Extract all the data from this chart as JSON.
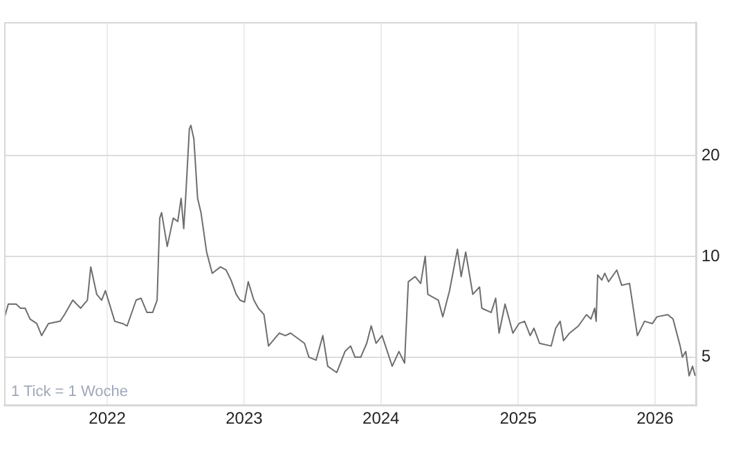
{
  "chart_data": {
    "type": "line",
    "annotations": [
      "1 Tick = 1 Woche"
    ],
    "x": [
      "2021-04-01",
      "2021-04-12",
      "2021-05-03",
      "2021-05-15",
      "2021-05-27",
      "2021-06-09",
      "2021-06-27",
      "2021-07-10",
      "2021-07-28",
      "2021-08-28",
      "2021-09-09",
      "2021-10-01",
      "2021-10-22",
      "2021-11-09",
      "2021-11-18",
      "2021-12-04",
      "2021-12-17",
      "2021-12-27",
      "2022-01-21",
      "2022-02-11",
      "2022-02-23",
      "2022-03-19",
      "2022-04-01",
      "2022-04-17",
      "2022-05-02",
      "2022-05-14",
      "2022-05-21",
      "2022-05-26",
      "2022-06-10",
      "2022-06-26",
      "2022-07-08",
      "2022-07-17",
      "2022-07-24",
      "2022-07-29",
      "2022-08-08",
      "2022-08-12",
      "2022-08-20",
      "2022-08-30",
      "2022-09-08",
      "2022-09-23",
      "2022-10-08",
      "2022-10-30",
      "2022-11-14",
      "2022-11-27",
      "2022-12-11",
      "2022-12-21",
      "2023-01-02",
      "2023-01-12",
      "2023-01-27",
      "2023-02-08",
      "2023-02-23",
      "2023-03-07",
      "2023-04-05",
      "2023-04-21",
      "2023-05-05",
      "2023-06-11",
      "2023-06-23",
      "2023-07-12",
      "2023-07-30",
      "2023-08-12",
      "2023-09-05",
      "2023-09-27",
      "2023-10-12",
      "2023-10-24",
      "2023-11-08",
      "2023-11-24",
      "2023-12-06",
      "2023-12-19",
      "2024-01-04",
      "2024-01-31",
      "2024-02-18",
      "2024-03-04",
      "2024-03-14",
      "2024-04-01",
      "2024-04-16",
      "2024-04-28",
      "2024-05-05",
      "2024-06-02",
      "2024-06-14",
      "2024-07-02",
      "2024-07-23",
      "2024-08-02",
      "2024-08-14",
      "2024-09-02",
      "2024-09-20",
      "2024-09-26",
      "2024-10-21",
      "2024-11-02",
      "2024-11-11",
      "2024-11-27",
      "2024-12-18",
      "2025-01-03",
      "2025-01-18",
      "2025-02-02",
      "2025-02-12",
      "2025-02-27",
      "2025-03-30",
      "2025-04-11",
      "2025-04-23",
      "2025-05-02",
      "2025-05-18",
      "2025-06-11",
      "2025-07-02",
      "2025-07-14",
      "2025-07-24",
      "2025-07-28",
      "2025-08-01",
      "2025-08-12",
      "2025-08-20",
      "2025-08-30",
      "2025-09-21",
      "2025-10-04",
      "2025-10-25",
      "2025-11-15",
      "2025-12-04",
      "2025-12-25",
      "2026-01-06",
      "2026-02-04",
      "2026-02-18",
      "2026-03-09",
      "2026-03-15",
      "2026-03-24",
      "2026-04-02",
      "2026-04-11",
      "2026-04-18"
    ],
    "series": [
      {
        "color": "#6e6e6e",
        "values": [
          6.5,
          7.2,
          7.2,
          7.0,
          7.0,
          6.5,
          6.3,
          5.8,
          6.3,
          6.4,
          6.7,
          7.4,
          7.0,
          7.4,
          9.3,
          7.7,
          7.4,
          7.9,
          6.4,
          6.3,
          6.2,
          7.4,
          7.5,
          6.8,
          6.8,
          7.4,
          13.0,
          13.5,
          10.7,
          13.0,
          12.7,
          14.9,
          12.1,
          14.9,
          24.0,
          24.6,
          22.4,
          14.9,
          13.5,
          10.3,
          8.9,
          9.3,
          9.1,
          8.5,
          7.7,
          7.4,
          7.3,
          8.4,
          7.4,
          7.0,
          6.7,
          5.4,
          5.9,
          5.8,
          5.9,
          5.5,
          5.0,
          4.9,
          5.8,
          4.7,
          4.5,
          5.2,
          5.4,
          5.0,
          5.0,
          5.5,
          6.2,
          5.5,
          5.8,
          4.7,
          5.2,
          4.8,
          8.4,
          8.7,
          8.3,
          10.0,
          7.7,
          7.4,
          6.6,
          7.9,
          10.5,
          8.7,
          10.3,
          7.7,
          8.1,
          7.0,
          6.8,
          7.5,
          5.9,
          7.2,
          5.9,
          6.3,
          6.4,
          5.8,
          6.1,
          5.5,
          5.4,
          6.1,
          6.4,
          5.6,
          5.9,
          6.2,
          6.7,
          6.5,
          7.0,
          6.4,
          8.8,
          8.5,
          8.9,
          8.4,
          9.1,
          8.2,
          8.3,
          5.8,
          6.4,
          6.3,
          6.6,
          6.7,
          6.5,
          5.4,
          5.0,
          5.2,
          4.4,
          4.7,
          4.4
        ]
      }
    ],
    "xlim": [
      "2021-04-01",
      "2026-04-20"
    ],
    "xticks": [
      "2022",
      "2023",
      "2024",
      "2025",
      "2026"
    ],
    "ylim": [
      3.6,
      50
    ],
    "yticks": [
      5,
      10,
      20
    ],
    "log": "y",
    "grid": true,
    "marker": "none",
    "line_style": "solid"
  }
}
